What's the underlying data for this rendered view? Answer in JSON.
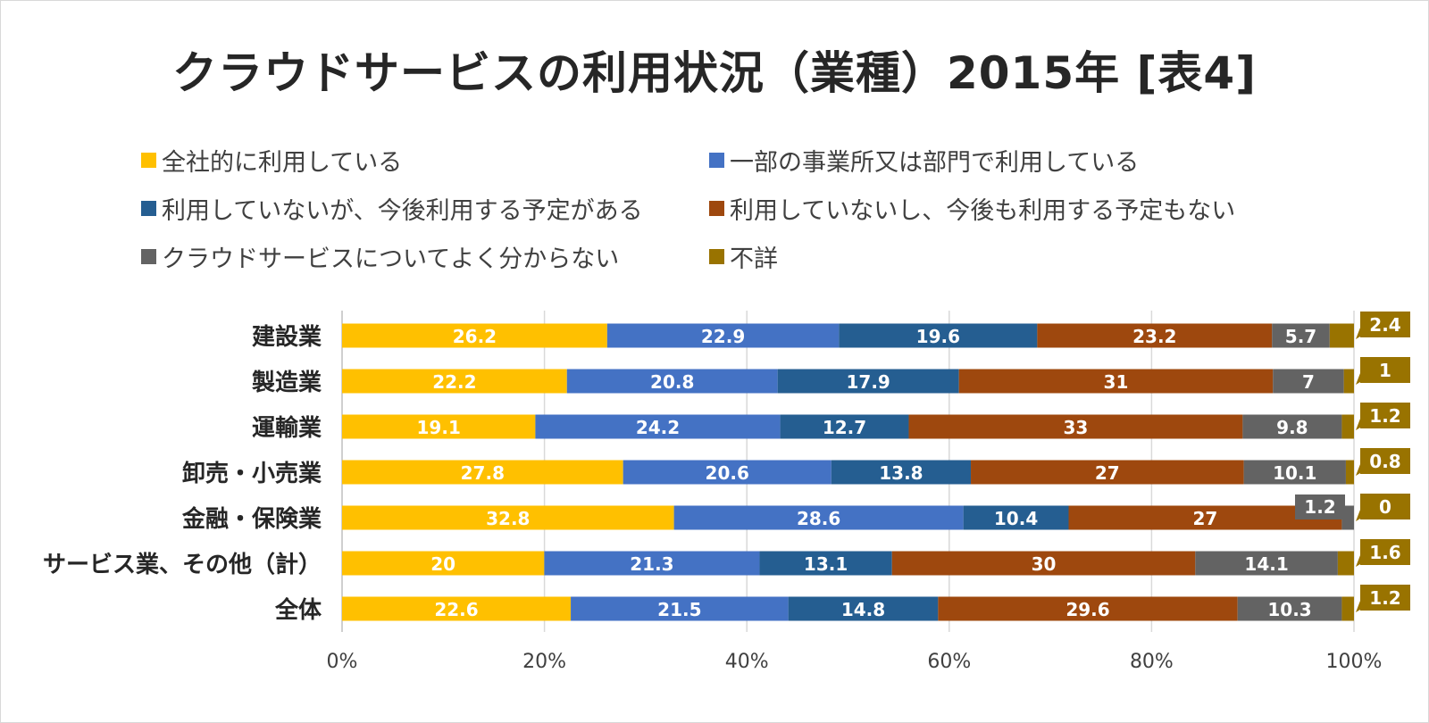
{
  "chart_data": {
    "type": "bar",
    "orientation": "horizontal",
    "stacked": "percent",
    "title": "クラウドサービスの利用状況（業種）2015年 [表4]",
    "categories": [
      "建設業",
      "製造業",
      "運輸業",
      "卸売・小売業",
      "金融・保険業",
      "サービス業、その他（計）",
      "全体"
    ],
    "category_display": [
      "建設業",
      "製造業",
      "運輸業",
      "卸売・小売業",
      "金融・保険業",
      "サービス業、その他（計）",
      "全体"
    ],
    "series": [
      {
        "name": "全社的に利用している",
        "color": "#FFC000",
        "values": [
          26.2,
          22.2,
          19.1,
          27.8,
          32.8,
          20,
          22.6
        ]
      },
      {
        "name": "一部の事業所又は部門で利用している",
        "color": "#4472C4",
        "values": [
          22.9,
          20.8,
          24.2,
          20.6,
          28.6,
          21.3,
          21.5
        ]
      },
      {
        "name": "利用していないが、今後利用する予定がある",
        "color": "#255E91",
        "values": [
          19.6,
          17.9,
          12.7,
          13.8,
          10.4,
          13.1,
          14.8
        ]
      },
      {
        "name": "利用していないし、今後も利用する予定もない",
        "color": "#9E480E",
        "values": [
          23.2,
          31,
          33,
          27,
          27,
          30,
          29.6
        ]
      },
      {
        "name": "クラウドサービスについてよく分からない",
        "color": "#636363",
        "values": [
          5.7,
          7,
          9.8,
          10.1,
          1.2,
          14.1,
          10.3
        ]
      },
      {
        "name": "不詳",
        "color": "#997300",
        "values": [
          2.4,
          1,
          1.2,
          0.8,
          0,
          1.6,
          1.2
        ]
      }
    ],
    "value_labels": [
      [
        "26.2",
        "22.2",
        "19.1",
        "27.8",
        "32.8",
        "20",
        "22.6"
      ],
      [
        "22.9",
        "20.8",
        "24.2",
        "20.6",
        "28.6",
        "21.3",
        "21.5"
      ],
      [
        "19.6",
        "17.9",
        "12.7",
        "13.8",
        "10.4",
        "13.1",
        "14.8"
      ],
      [
        "23.2",
        "31",
        "33",
        "27",
        "27",
        "30",
        "29.6"
      ],
      [
        "5.7",
        "7",
        "9.8",
        "10.1",
        "1.2",
        "14.1",
        "10.3"
      ],
      [
        "2.4",
        "1",
        "1.2",
        "0.8",
        "0",
        "1.6",
        "1.2"
      ]
    ],
    "x_ticks": [
      "0%",
      "20%",
      "40%",
      "60%",
      "80%",
      "100%"
    ],
    "xlim": [
      0,
      100
    ],
    "xlabel": "",
    "ylabel": "",
    "grid": true,
    "legend_position": "top"
  }
}
